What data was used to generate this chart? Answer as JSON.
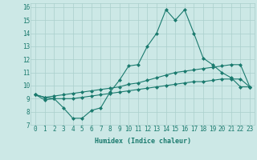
{
  "xlabel": "Humidex (Indice chaleur)",
  "background_color": "#cce8e6",
  "grid_color": "#aacfcc",
  "line_color": "#1a7a6e",
  "xlim": [
    -0.5,
    23.5
  ],
  "ylim": [
    7,
    16.3
  ],
  "xticks": [
    0,
    1,
    2,
    3,
    4,
    5,
    6,
    7,
    8,
    9,
    10,
    11,
    12,
    13,
    14,
    15,
    16,
    17,
    18,
    19,
    20,
    21,
    22,
    23
  ],
  "yticks": [
    7,
    8,
    9,
    10,
    11,
    12,
    13,
    14,
    15,
    16
  ],
  "series": [
    {
      "x": [
        0,
        1,
        2,
        3,
        4,
        5,
        6,
        7,
        8,
        9,
        10,
        11,
        12,
        13,
        14,
        15,
        16,
        17,
        18,
        19,
        20,
        21,
        22,
        23
      ],
      "y": [
        9.3,
        8.9,
        9.0,
        8.3,
        7.5,
        7.5,
        8.1,
        8.3,
        9.5,
        10.4,
        11.5,
        11.6,
        13.0,
        14.0,
        15.8,
        15.0,
        15.8,
        14.0,
        12.1,
        11.6,
        11.0,
        10.6,
        9.9,
        9.9
      ]
    },
    {
      "x": [
        0,
        1,
        2,
        3,
        4,
        5,
        6,
        7,
        8,
        9,
        10,
        11,
        12,
        13,
        14,
        15,
        16,
        17,
        18,
        19,
        20,
        21,
        22,
        23
      ],
      "y": [
        9.3,
        9.1,
        9.2,
        9.3,
        9.4,
        9.5,
        9.6,
        9.7,
        9.8,
        9.9,
        10.1,
        10.2,
        10.4,
        10.6,
        10.8,
        11.0,
        11.1,
        11.2,
        11.3,
        11.4,
        11.5,
        11.6,
        11.6,
        9.9
      ]
    },
    {
      "x": [
        0,
        1,
        2,
        3,
        4,
        5,
        6,
        7,
        8,
        9,
        10,
        11,
        12,
        13,
        14,
        15,
        16,
        17,
        18,
        19,
        20,
        21,
        22,
        23
      ],
      "y": [
        9.3,
        9.1,
        9.0,
        9.0,
        9.0,
        9.1,
        9.2,
        9.3,
        9.4,
        9.5,
        9.6,
        9.7,
        9.8,
        9.9,
        10.0,
        10.1,
        10.2,
        10.3,
        10.3,
        10.4,
        10.5,
        10.5,
        10.5,
        9.9
      ]
    }
  ],
  "tick_fontsize": 5.5,
  "xlabel_fontsize": 6.0
}
